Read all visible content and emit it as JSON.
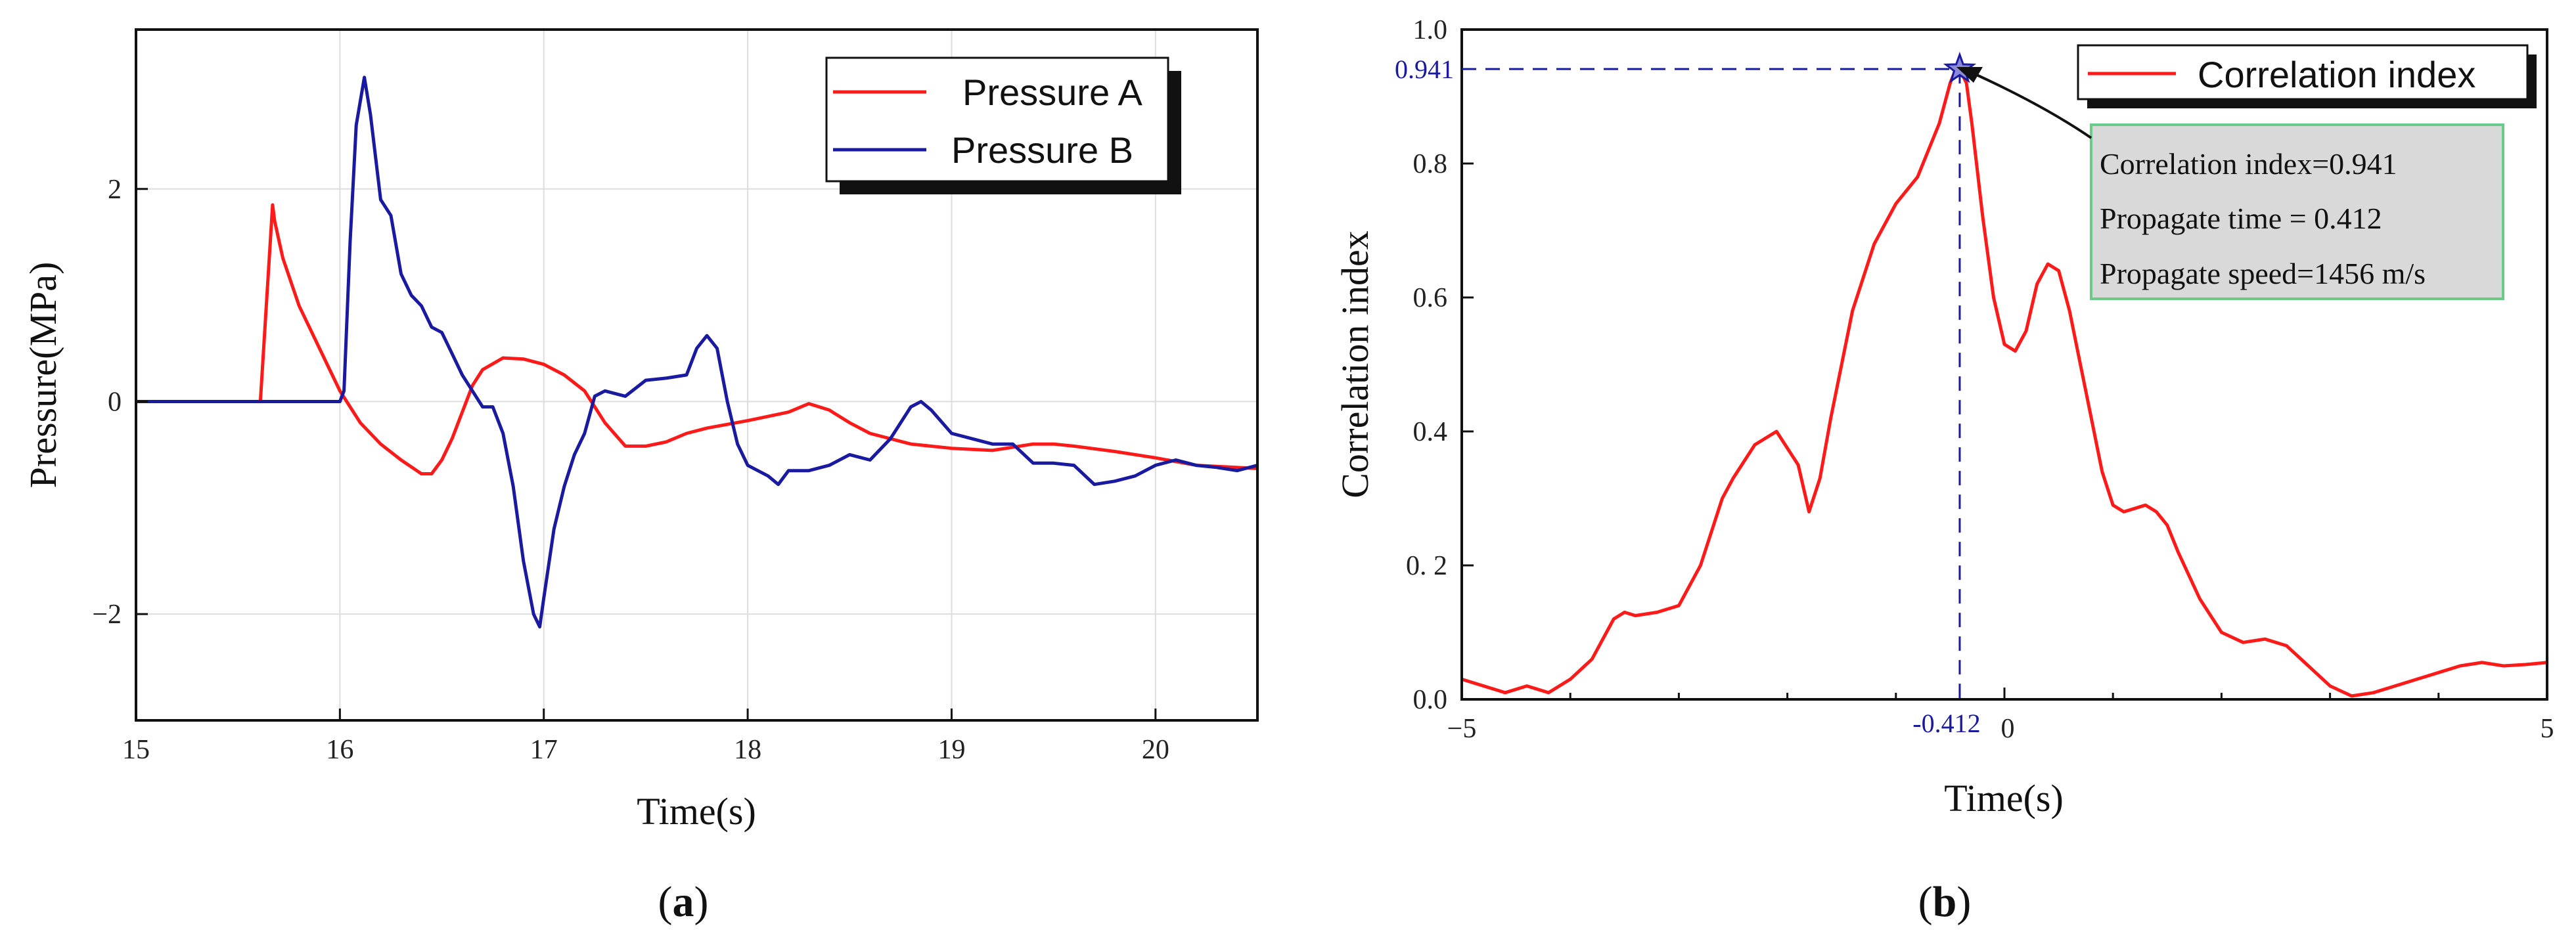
{
  "colors": {
    "red": "#ff1a1a",
    "blue": "#1a1aa0",
    "grid": "#dddddd",
    "box_fill": "#d9d9d9",
    "box_border": "#66cc88"
  },
  "chart_data": [
    {
      "type": "line",
      "panel": "(a)",
      "caption_letter": "a",
      "xlabel": "Time(s)",
      "ylabel": "Pressure(MPa)",
      "xlim": [
        15,
        20.5
      ],
      "ylim": [
        -3,
        3.5
      ],
      "xticks": [
        15,
        16,
        17,
        18,
        19,
        20
      ],
      "xtick_labels": [
        "15",
        "16",
        "17",
        "18",
        "19",
        "20"
      ],
      "yticks": [
        2,
        0,
        -2
      ],
      "ytick_labels": [
        "2",
        "0",
        "−2"
      ],
      "grid": true,
      "legend": "top-right",
      "series": [
        {
          "name": "Pressure A",
          "color": "#ff1a1a",
          "x": [
            15,
            15.6,
            15.61,
            15.67,
            15.68,
            15.72,
            15.8,
            15.9,
            16.0,
            16.1,
            16.2,
            16.3,
            16.4,
            16.45,
            16.5,
            16.55,
            16.6,
            16.65,
            16.7,
            16.8,
            16.9,
            17.0,
            17.1,
            17.2,
            17.3,
            17.4,
            17.5,
            17.6,
            17.7,
            17.8,
            18.0,
            18.2,
            18.3,
            18.4,
            18.5,
            18.6,
            18.8,
            19.0,
            19.2,
            19.4,
            19.5,
            19.6,
            19.8,
            20.0,
            20.2,
            20.5
          ],
          "y": [
            0,
            0,
            0,
            1.85,
            1.7,
            1.35,
            0.9,
            0.5,
            0.1,
            -0.2,
            -0.4,
            -0.55,
            -0.68,
            -0.68,
            -0.55,
            -0.35,
            -0.1,
            0.15,
            0.3,
            0.41,
            0.4,
            0.35,
            0.25,
            0.1,
            -0.2,
            -0.42,
            -0.42,
            -0.38,
            -0.3,
            -0.25,
            -0.18,
            -0.1,
            -0.02,
            -0.08,
            -0.2,
            -0.3,
            -0.4,
            -0.44,
            -0.46,
            -0.4,
            -0.4,
            -0.42,
            -0.47,
            -0.53,
            -0.6,
            -0.63
          ]
        },
        {
          "name": "Pressure B",
          "color": "#1a1aa0",
          "x": [
            15,
            16.0,
            16.02,
            16.05,
            16.08,
            16.12,
            16.15,
            16.2,
            16.25,
            16.3,
            16.35,
            16.4,
            16.45,
            16.5,
            16.55,
            16.6,
            16.65,
            16.7,
            16.75,
            16.8,
            16.85,
            16.9,
            16.95,
            16.98,
            17.0,
            17.05,
            17.1,
            17.15,
            17.2,
            17.25,
            17.3,
            17.4,
            17.5,
            17.6,
            17.7,
            17.75,
            17.8,
            17.85,
            17.9,
            17.95,
            18.0,
            18.1,
            18.15,
            18.2,
            18.3,
            18.4,
            18.5,
            18.6,
            18.7,
            18.8,
            18.85,
            18.9,
            19.0,
            19.1,
            19.2,
            19.3,
            19.4,
            19.5,
            19.6,
            19.7,
            19.8,
            19.9,
            20.0,
            20.1,
            20.2,
            20.3,
            20.4,
            20.5
          ],
          "y": [
            0,
            0,
            0.1,
            1.5,
            2.6,
            3.05,
            2.7,
            1.9,
            1.75,
            1.2,
            1.0,
            0.9,
            0.7,
            0.65,
            0.45,
            0.25,
            0.1,
            -0.05,
            -0.05,
            -0.3,
            -0.8,
            -1.5,
            -2.0,
            -2.12,
            -1.85,
            -1.2,
            -0.8,
            -0.5,
            -0.3,
            0.05,
            0.1,
            0.05,
            0.2,
            0.22,
            0.25,
            0.5,
            0.62,
            0.5,
            0.0,
            -0.4,
            -0.6,
            -0.7,
            -0.78,
            -0.65,
            -0.65,
            -0.6,
            -0.5,
            -0.55,
            -0.35,
            -0.05,
            0.0,
            -0.08,
            -0.3,
            -0.35,
            -0.4,
            -0.4,
            -0.58,
            -0.58,
            -0.6,
            -0.78,
            -0.75,
            -0.7,
            -0.6,
            -0.55,
            -0.6,
            -0.62,
            -0.65,
            -0.6
          ]
        }
      ]
    },
    {
      "type": "line",
      "panel": "(b)",
      "caption_letter": "b",
      "xlabel": "Time(s)",
      "ylabel": "Correlation index",
      "xlim": [
        -5,
        5
      ],
      "ylim": [
        0,
        1.0
      ],
      "xticks": [
        -5,
        0,
        5
      ],
      "xtick_labels": [
        "−5",
        "0",
        "5"
      ],
      "yticks": [
        0,
        0.2,
        0.4,
        0.6,
        0.8,
        1.0
      ],
      "ytick_labels": [
        "0.0",
        "0. 2",
        "0.4",
        "0.6",
        "0.8",
        "1.0"
      ],
      "grid": false,
      "legend": "top-right",
      "series": [
        {
          "name": "Correlation index",
          "color": "#ff1a1a",
          "x": [
            -5,
            -4.6,
            -4.4,
            -4.2,
            -4.0,
            -3.8,
            -3.6,
            -3.5,
            -3.4,
            -3.2,
            -3.0,
            -2.8,
            -2.6,
            -2.5,
            -2.3,
            -2.1,
            -1.9,
            -1.8,
            -1.7,
            -1.6,
            -1.5,
            -1.4,
            -1.2,
            -1.0,
            -0.8,
            -0.6,
            -0.5,
            -0.45,
            -0.412,
            -0.35,
            -0.3,
            -0.2,
            -0.1,
            0.0,
            0.1,
            0.2,
            0.3,
            0.4,
            0.5,
            0.6,
            0.7,
            0.8,
            0.9,
            1.0,
            1.1,
            1.2,
            1.3,
            1.4,
            1.5,
            1.6,
            1.8,
            2.0,
            2.2,
            2.4,
            2.6,
            2.8,
            3.0,
            3.2,
            3.4,
            3.6,
            3.8,
            4.0,
            4.2,
            4.4,
            4.6,
            4.8,
            5.0
          ],
          "y": [
            0.03,
            0.01,
            0.02,
            0.01,
            0.03,
            0.06,
            0.12,
            0.13,
            0.125,
            0.13,
            0.14,
            0.2,
            0.3,
            0.33,
            0.38,
            0.4,
            0.35,
            0.28,
            0.33,
            0.42,
            0.5,
            0.58,
            0.68,
            0.74,
            0.78,
            0.86,
            0.92,
            0.94,
            0.941,
            0.92,
            0.86,
            0.72,
            0.6,
            0.53,
            0.52,
            0.55,
            0.62,
            0.65,
            0.64,
            0.58,
            0.5,
            0.42,
            0.34,
            0.29,
            0.28,
            0.285,
            0.29,
            0.28,
            0.26,
            0.22,
            0.15,
            0.1,
            0.085,
            0.09,
            0.08,
            0.05,
            0.02,
            0.005,
            0.01,
            0.02,
            0.03,
            0.04,
            0.05,
            0.055,
            0.05,
            0.052,
            0.055
          ]
        }
      ],
      "peak": {
        "x": -0.412,
        "y": 0.941,
        "x_label": "-0.412",
        "y_label": "0.941"
      },
      "annotation_lines": [
        "Correlation index=0.941",
        "Propagate time = 0.412",
        "Propagate speed=1456 m/s"
      ]
    }
  ]
}
